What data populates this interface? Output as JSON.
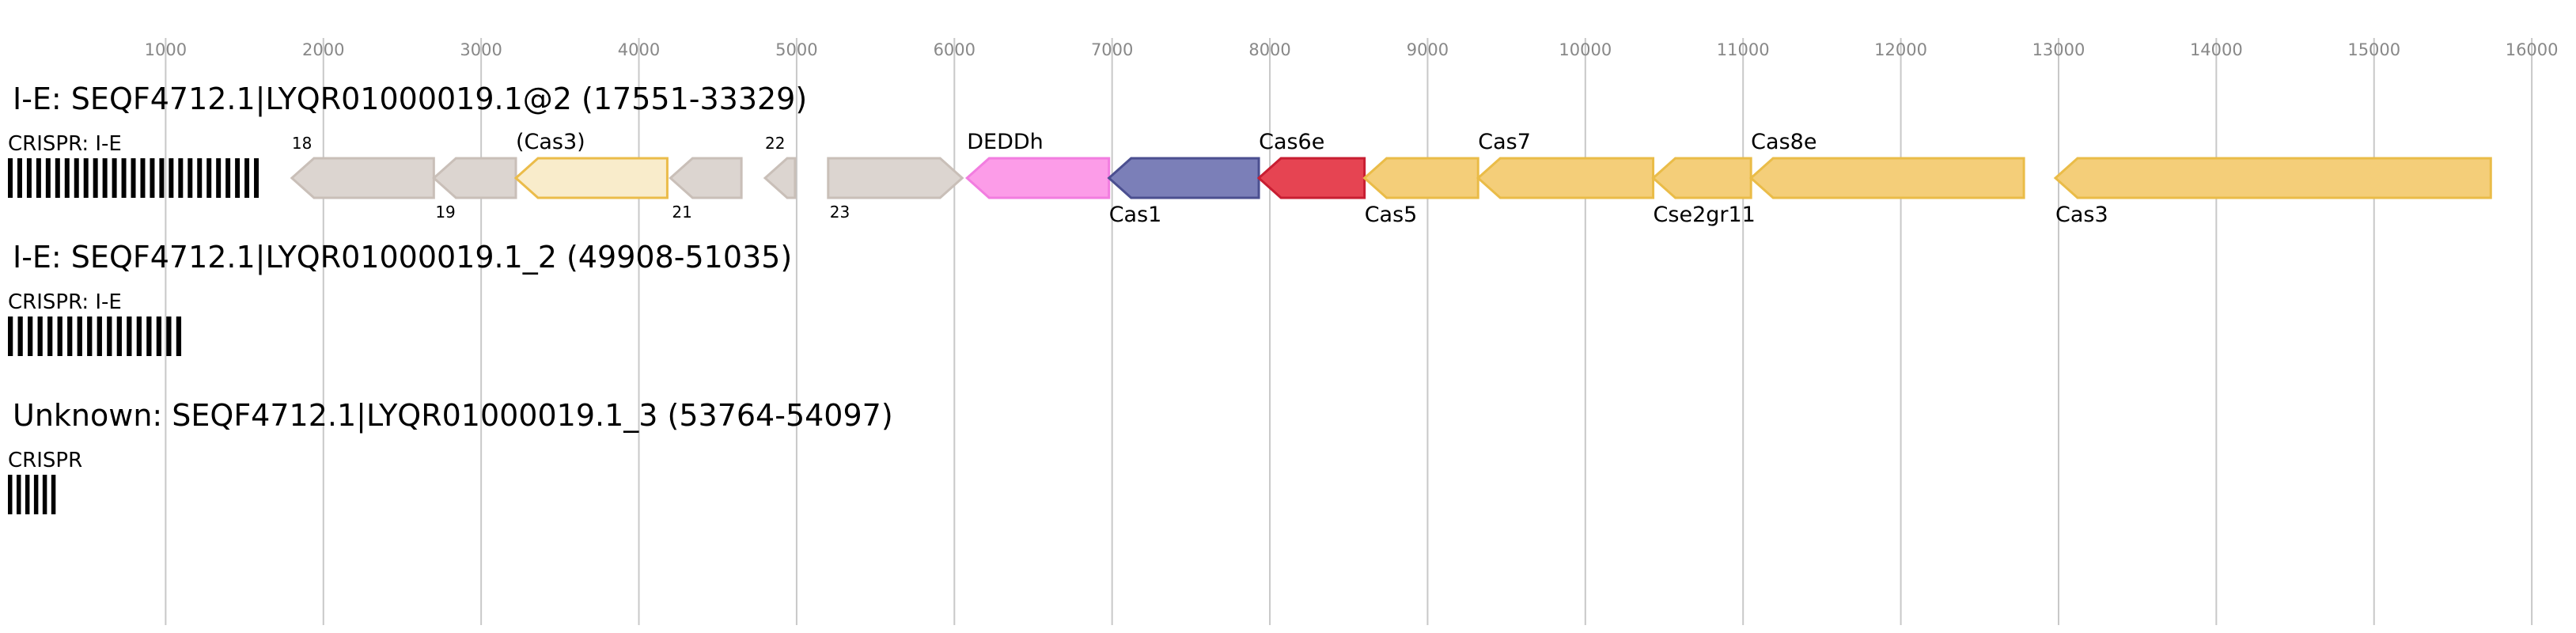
{
  "axis": {
    "ticks": [
      "1000",
      "2000",
      "3000",
      "4000",
      "5000",
      "6000",
      "7000",
      "8000",
      "9000",
      "10000",
      "11000",
      "12000",
      "13000",
      "14000",
      "15000",
      "16000"
    ],
    "tick_values": [
      1000,
      2000,
      3000,
      4000,
      5000,
      6000,
      7000,
      8000,
      9000,
      10000,
      11000,
      12000,
      13000,
      14000,
      15000,
      16000
    ],
    "min": 0,
    "max": 16200
  },
  "tracks": [
    {
      "title": "I-E: SEQF4712.1|LYQR01000019.1@2 (17551-33329)",
      "crispr_label": "CRISPR: I-E",
      "crispr_bar_count": 27,
      "crispr_end": 1620,
      "genes": [
        {
          "start": 1800,
          "end": 2700,
          "strand": -1,
          "label": "18",
          "label_pos": "above",
          "small": true,
          "style": "unknown"
        },
        {
          "start": 2700,
          "end": 3220,
          "strand": -1,
          "label": "19",
          "label_pos": "below",
          "small": true,
          "style": "unknown"
        },
        {
          "start": 3220,
          "end": 4180,
          "strand": -1,
          "label": "(Cas3)",
          "label_pos": "above",
          "small": false,
          "style": "partial"
        },
        {
          "start": 4200,
          "end": 4650,
          "strand": -1,
          "label": "21",
          "label_pos": "below",
          "small": true,
          "style": "unknown"
        },
        {
          "start": 4800,
          "end": 4990,
          "strand": -1,
          "label": "22",
          "label_pos": "above",
          "small": true,
          "style": "unknown"
        },
        {
          "start": 5200,
          "end": 6050,
          "strand": 1,
          "label": "23",
          "label_pos": "below",
          "small": true,
          "style": "unknown"
        },
        {
          "start": 6080,
          "end": 6980,
          "strand": -1,
          "label": "DEDDh",
          "label_pos": "above",
          "small": false,
          "style": "deddh"
        },
        {
          "start": 6980,
          "end": 7930,
          "strand": -1,
          "label": "Cas1",
          "label_pos": "below",
          "small": false,
          "style": "cas1"
        },
        {
          "start": 7930,
          "end": 8600,
          "strand": -1,
          "label": "Cas6e",
          "label_pos": "above",
          "small": false,
          "style": "cas6"
        },
        {
          "start": 8600,
          "end": 9320,
          "strand": -1,
          "label": "Cas5",
          "label_pos": "below",
          "small": false,
          "style": "core"
        },
        {
          "start": 9320,
          "end": 10430,
          "strand": -1,
          "label": "Cas7",
          "label_pos": "above",
          "small": false,
          "style": "core"
        },
        {
          "start": 10430,
          "end": 11050,
          "strand": -1,
          "label": "Cse2gr11",
          "label_pos": "below",
          "small": false,
          "style": "core"
        },
        {
          "start": 11050,
          "end": 12780,
          "strand": -1,
          "label": "Cas8e",
          "label_pos": "above",
          "small": false,
          "style": "core"
        },
        {
          "start": 12980,
          "end": 15740,
          "strand": -1,
          "label": "Cas3",
          "label_pos": "below",
          "small": false,
          "style": "core"
        }
      ]
    },
    {
      "title": "I-E: SEQF4712.1|LYQR01000019.1_2 (49908-51035)",
      "crispr_label": "CRISPR: I-E",
      "crispr_bar_count": 18,
      "crispr_end": 1130,
      "genes": []
    },
    {
      "title": "Unknown: SEQF4712.1|LYQR01000019.1_3 (53764-54097)",
      "crispr_label": "CRISPR",
      "crispr_bar_count": 6,
      "crispr_end": 330,
      "genes": []
    }
  ],
  "colors": {
    "grid": "#c8c8c8",
    "tick_text": "#888888",
    "unknown_fill": "#dcd5d0",
    "unknown_stroke": "#c9bfb8",
    "partial_fill": "#f9eccb",
    "partial_stroke": "#ebbc4a",
    "deddh_fill": "#fc9ce8",
    "deddh_stroke": "#f27de0",
    "cas1_fill": "#7b7fb8",
    "cas1_stroke": "#4b4f90",
    "cas6_fill": "#e64452",
    "cas6_stroke": "#c81e32",
    "core_fill": "#f4ce79",
    "core_stroke": "#eabc48",
    "crispr": "#000000",
    "text": "#000000"
  }
}
